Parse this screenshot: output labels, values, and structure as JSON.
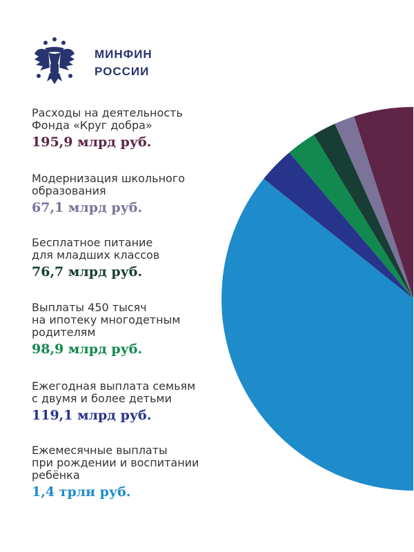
{
  "brand": {
    "line1": "МИНФИН",
    "line2": "РОССИИ",
    "logo": "double-headed-eagle-emblem"
  },
  "chart_data": {
    "type": "pie",
    "display": "left half visible",
    "unit": "млрд руб.",
    "slices": [
      {
        "label": "Расходы на деятельность Фонда «Круг добра»",
        "label_lines": [
          "Расходы на деятельность",
          "Фонда «Круг добра»"
        ],
        "value": 195.9,
        "value_label": "195,9 млрд руб.",
        "color": "#5e2546"
      },
      {
        "label": "Модернизация школьного образования",
        "label_lines": [
          "Модернизация школьного",
          "образования"
        ],
        "value": 67.1,
        "value_label": "67,1 млрд руб.",
        "color": "#7b7399"
      },
      {
        "label": "Бесплатное питание для младших классов",
        "label_lines": [
          "Бесплатное питание",
          "для младших классов"
        ],
        "value": 76.7,
        "value_label": "76,7 млрд руб.",
        "color": "#173d35"
      },
      {
        "label": "Выплаты 450 тысяч на ипотеку многодетным родителям",
        "label_lines": [
          "Выплаты 450 тысяч",
          "на ипотеку многодетным",
          "родителям"
        ],
        "value": 98.9,
        "value_label": "98,9 млрд руб.",
        "color": "#12894f"
      },
      {
        "label": "Ежегодная выплата семьям с двумя и более детьми",
        "label_lines": [
          "Ежегодная выплата семьям",
          "с двумя и более детьми"
        ],
        "value": 119.1,
        "value_label": "119,1 млрд руб.",
        "color": "#27348b"
      },
      {
        "label": "Ежемесячные выплаты при рождении и воспитании ребёнка",
        "label_lines": [
          "Ежемесячные выплаты",
          "при рождении и воспитании",
          "ребёнка"
        ],
        "value": 1400,
        "value_label": "1,4 трлн руб.",
        "color": "#1e8bcb"
      }
    ]
  }
}
